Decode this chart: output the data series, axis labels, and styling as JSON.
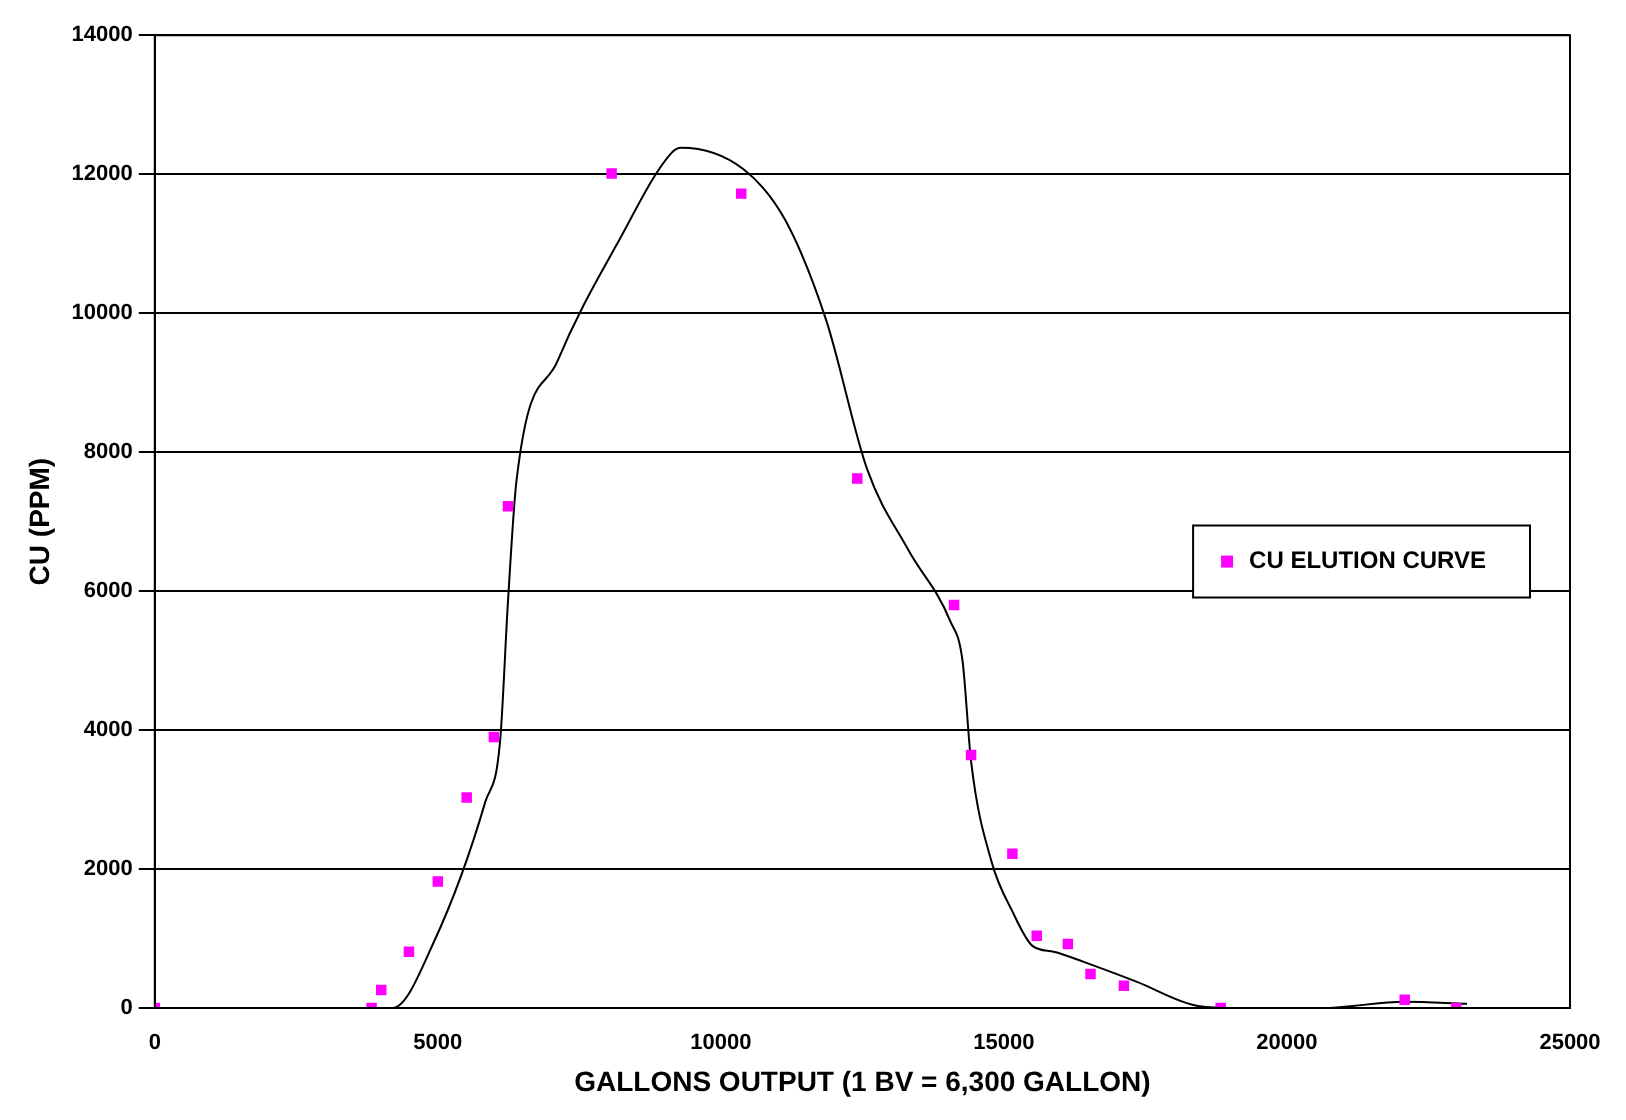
{
  "chart_data": {
    "type": "scatter",
    "xlabel": "GALLONS OUTPUT (1 BV = 6,300 GALLON)",
    "ylabel": "CU (PPM)",
    "xlim": [
      0,
      25000
    ],
    "xticks": [
      0,
      5000,
      10000,
      15000,
      20000,
      25000
    ],
    "ylim": [
      0,
      14000
    ],
    "yticks": [
      0,
      2000,
      4000,
      6000,
      8000,
      10000,
      12000,
      14000
    ],
    "grid": "y",
    "legend": "right",
    "marker": "square",
    "series": [
      {
        "name": "CU ELUTION CURVE",
        "color": "#ff00ff",
        "x": [
          0,
          3830,
          4000,
          4490,
          5000,
          5510,
          5990,
          6240,
          8070,
          10360,
          12410,
          14120,
          14420,
          15150,
          15580,
          16130,
          16530,
          17120,
          18830,
          22080,
          22990
        ],
        "values": [
          0,
          0,
          260,
          810,
          1820,
          3030,
          3900,
          7220,
          12010,
          11720,
          7620,
          5800,
          3640,
          2220,
          1040,
          920,
          490,
          320,
          0,
          120,
          0
        ]
      },
      {
        "type": "line",
        "color": "#000000",
        "marker": "none",
        "x": [
          180,
          4200,
          4930,
          5840,
          6100,
          6240,
          6390,
          7120,
          8210,
          9120,
          9300,
          10400,
          11130,
          11860,
          12590,
          13320,
          14050,
          14270,
          14420,
          14780,
          15150,
          15510,
          15880,
          16420,
          17340,
          18430,
          19160,
          20620,
          22080,
          23180
        ],
        "values": [
          0,
          0,
          950,
          2970,
          3840,
          5860,
          7590,
          9320,
          11060,
          12300,
          12380,
          12070,
          11350,
          9900,
          7740,
          6580,
          5570,
          4990,
          3550,
          2110,
          1390,
          890,
          810,
          660,
          380,
          30,
          0,
          0,
          90,
          60
        ]
      }
    ]
  }
}
